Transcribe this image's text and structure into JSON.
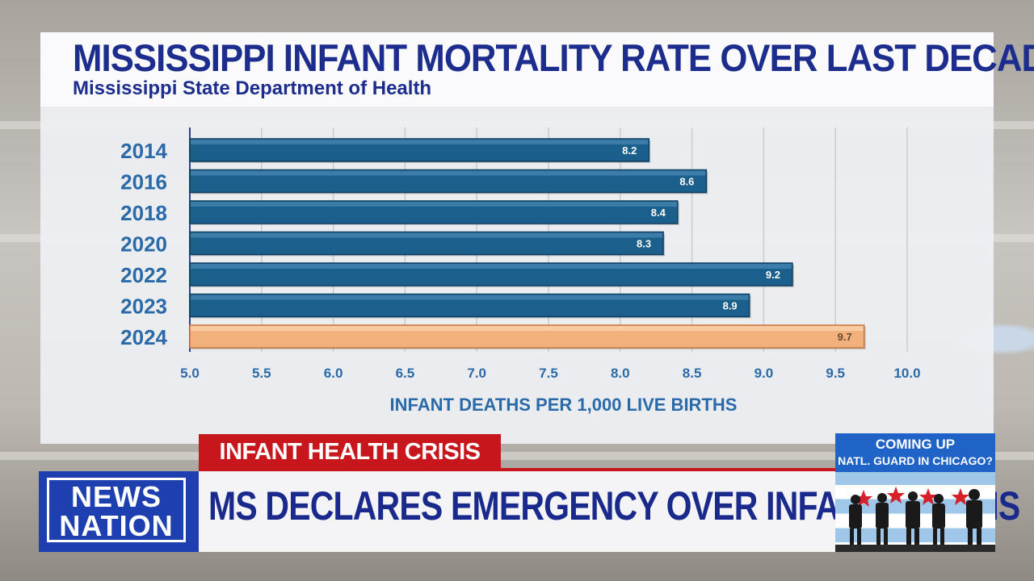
{
  "chart_data": {
    "type": "bar",
    "orientation": "horizontal",
    "title": "MISSISSIPPI INFANT MORTALITY RATE OVER LAST DECADE",
    "subtitle": "Mississippi State Department of Health",
    "categories": [
      "2014",
      "2016",
      "2018",
      "2020",
      "2022",
      "2023",
      "2024"
    ],
    "values": [
      8.2,
      8.6,
      8.4,
      8.3,
      9.2,
      8.9,
      9.7
    ],
    "value_labels": [
      "8.2",
      "8.6",
      "8.4",
      "8.3",
      "9.2",
      "8.9",
      "9.7"
    ],
    "highlight_index": 6,
    "xlabel": "INFANT DEATHS PER 1,000 LIVE BIRTHS",
    "ylabel": "",
    "xlim": [
      5.0,
      10.0
    ],
    "xticks": [
      "5.0",
      "5.5",
      "6.0",
      "6.5",
      "7.0",
      "7.5",
      "8.0",
      "8.5",
      "9.0",
      "9.5",
      "10.0"
    ],
    "grid": true,
    "colors": {
      "bar": "#1b5f8c",
      "highlight": "#f2b07c",
      "axis_text": "#2a6aa8",
      "label_text": "#1c2d8e"
    }
  },
  "lower_third": {
    "tag": "INFANT HEALTH CRISIS",
    "headline": "MS DECLARES EMERGENCY OVER INFANT DEATHS",
    "tag_color": "#c8161d"
  },
  "logo": {
    "line1": "NEWS",
    "line2": "NATION"
  },
  "coming_up": {
    "label": "COMING UP",
    "topic": "NATL. GUARD IN CHICAGO?"
  }
}
